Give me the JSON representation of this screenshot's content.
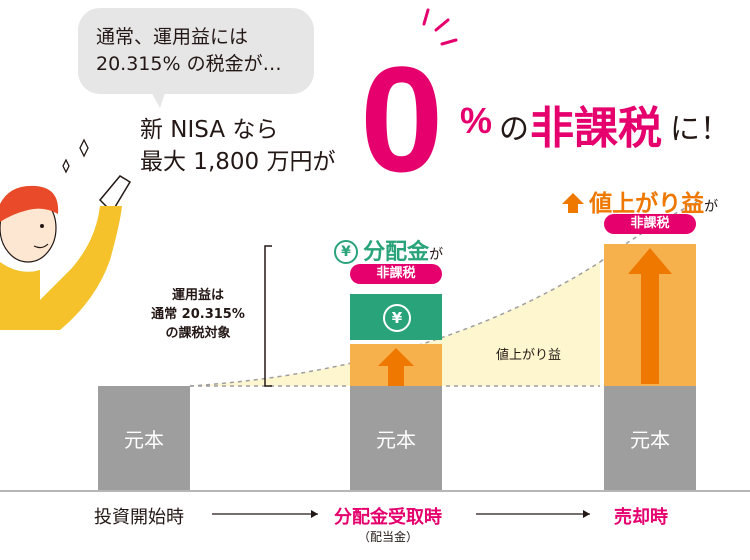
{
  "bubble": {
    "line1": "通常、運用益には",
    "line2": "20.315% の税金が…"
  },
  "nisa": {
    "line1": "新 NISA なら",
    "line2": "最大 1,800 万円が"
  },
  "headline": {
    "zero": "0",
    "percent": "%",
    "no": "の",
    "hikazei": "非課税",
    "ni": "に！"
  },
  "side_note": {
    "line1": "運用益は",
    "line2": "通常 20.315%",
    "line3": "の課税対象"
  },
  "columns": {
    "start": {
      "principal_label": "元本",
      "axis_label": "投資開始時"
    },
    "dividend": {
      "principal_label": "元本",
      "title": "分配金",
      "ga": "が",
      "pill": "非課税",
      "yen_symbol": "¥",
      "axis_label": "分配金受取時",
      "axis_sub": "（配当金）"
    },
    "sale": {
      "principal_label": "元本",
      "title": "値上がり益",
      "ga": "が",
      "pill": "非課税",
      "axis_label": "売却時"
    }
  },
  "curve_label": "値上がり益",
  "colors": {
    "pink": "#e5006e",
    "green": "#29a37a",
    "orange": "#ee7800",
    "light_orange": "#f6b04c",
    "gray": "#9e9e9e",
    "cream": "#fdf6cf"
  }
}
